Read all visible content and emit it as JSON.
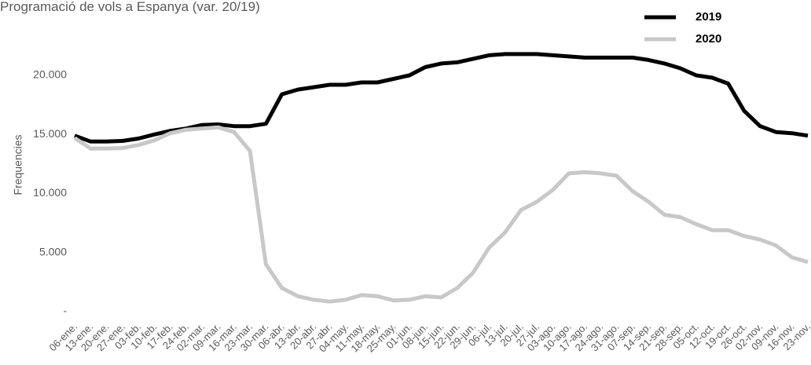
{
  "chart_data": {
    "type": "line",
    "title": "Programació de vols a Espanya (var. 20/19)",
    "y_label": "Frequencies",
    "categories": [
      "06-ene.",
      "13-ene.",
      "20-ene.",
      "27-ene.",
      "03-feb.",
      "10-feb.",
      "17-feb.",
      "24-feb.",
      "02-mar.",
      "09-mar.",
      "16-mar.",
      "23-mar.",
      "30-mar.",
      "06-abr.",
      "13-abr.",
      "20-abr.",
      "27-abr.",
      "04-may.",
      "11-may.",
      "18-may.",
      "25-may.",
      "01-jun.",
      "08-jun.",
      "15-jun.",
      "22-jun.",
      "29-jun.",
      "06-jul.",
      "13-jul.",
      "20-jul.",
      "27-jul.",
      "03-ago.",
      "10-ago.",
      "17-ago.",
      "24-ago.",
      "31-ago.",
      "07-sep.",
      "14-sep.",
      "21-sep.",
      "28-sep.",
      "05-oct.",
      "12-oct.",
      "19-oct.",
      "26-oct.",
      "02-nov.",
      "09-nov.",
      "16-nov.",
      "23-nov."
    ],
    "series": [
      {
        "name": "2019",
        "color": "#000000",
        "values": [
          14900,
          14400,
          14400,
          14450,
          14650,
          15000,
          15300,
          15500,
          15800,
          15850,
          15700,
          15700,
          15900,
          18400,
          18800,
          19000,
          19200,
          19200,
          19400,
          19400,
          19700,
          20000,
          20700,
          21000,
          21100,
          21400,
          21700,
          21800,
          21800,
          21800,
          21700,
          21600,
          21500,
          21500,
          21500,
          21500,
          21300,
          21000,
          20600,
          20000,
          19800,
          19300,
          17000,
          15700,
          15200,
          15100,
          14900
        ]
      },
      {
        "name": "2020",
        "color": "#c8c8c8",
        "values": [
          14700,
          13800,
          13800,
          13850,
          14100,
          14500,
          15100,
          15400,
          15500,
          15600,
          15200,
          13600,
          4000,
          2000,
          1300,
          1000,
          850,
          1000,
          1400,
          1300,
          950,
          1000,
          1300,
          1200,
          2000,
          3300,
          5400,
          6700,
          8600,
          9300,
          10300,
          11700,
          11800,
          11700,
          11500,
          10200,
          9300,
          8200,
          8000,
          7400,
          6900,
          6900,
          6400,
          6100,
          5600,
          4600,
          4200
        ]
      }
    ],
    "ylim": [
      0,
      22500
    ],
    "yticks": [
      {
        "value": 0,
        "label": "-"
      },
      {
        "value": 5000,
        "label": "5.000"
      },
      {
        "value": 10000,
        "label": "10.000"
      },
      {
        "value": 15000,
        "label": "15.000"
      },
      {
        "value": 20000,
        "label": "20.000"
      }
    ],
    "legend": "top-right"
  }
}
